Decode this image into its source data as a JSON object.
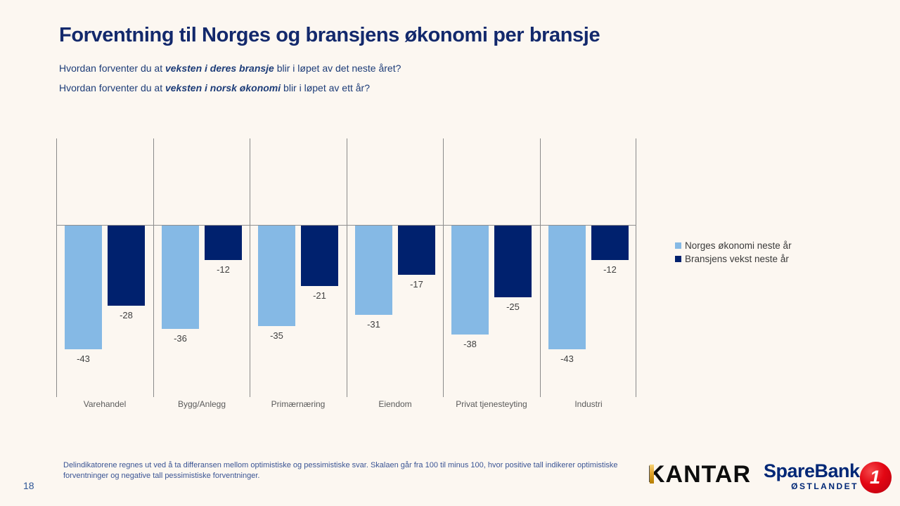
{
  "slide": {
    "title": "Forventning til Norges og bransjens økonomi per bransje",
    "question1": {
      "prefix": "Hvordan forventer du at ",
      "emphasis": "veksten i deres bransje",
      "suffix": " blir i løpet av det neste året?"
    },
    "question2": {
      "prefix": "Hvordan forventer du at ",
      "emphasis": "veksten i norsk økonomi",
      "suffix": " blir i løpet av ett år?"
    },
    "footnote": "Delindikatorene regnes ut ved å ta differansen mellom optimistiske og pessimistiske svar. Skalaen går fra 100 til minus 100, hvor positive tall indikerer optimistiske forventninger og negative tall pessimistiske forventninger.",
    "page_number": "18"
  },
  "chart_data": {
    "type": "bar",
    "categories": [
      "Varehandel",
      "Bygg/Anlegg",
      "Primærnæring",
      "Eiendom",
      "Privat tjenesteyting",
      "Industri"
    ],
    "series": [
      {
        "name": "Norges økonomi neste år",
        "color": "#85B9E5",
        "values": [
          -43,
          -36,
          -35,
          -31,
          -38,
          -43
        ]
      },
      {
        "name": "Bransjens vekst neste år",
        "color": "#00216E",
        "values": [
          -28,
          -12,
          -21,
          -17,
          -25,
          -12
        ]
      }
    ],
    "ylim": [
      -60,
      30
    ],
    "grid": "vertical category separators",
    "zero_line": true,
    "data_labels": true,
    "legend_position": "right"
  },
  "logos": {
    "kantar": "KANTAR",
    "sparebank": {
      "name": "SpareBank",
      "region": "ØSTLANDET",
      "badge": "1"
    }
  },
  "colors": {
    "background": "#FCF7F1",
    "title": "#13296C",
    "question_text": "#1D3C78",
    "series1": "#85B9E5",
    "series2": "#00216E",
    "gridline": "#8A8A8A",
    "value_label": "#404040",
    "category_label": "#5A5A5A",
    "footnote": "#3A5494",
    "kantar_gold": "#E3A42C",
    "sparebank_navy": "#002776",
    "sparebank_red": "#E30613"
  }
}
